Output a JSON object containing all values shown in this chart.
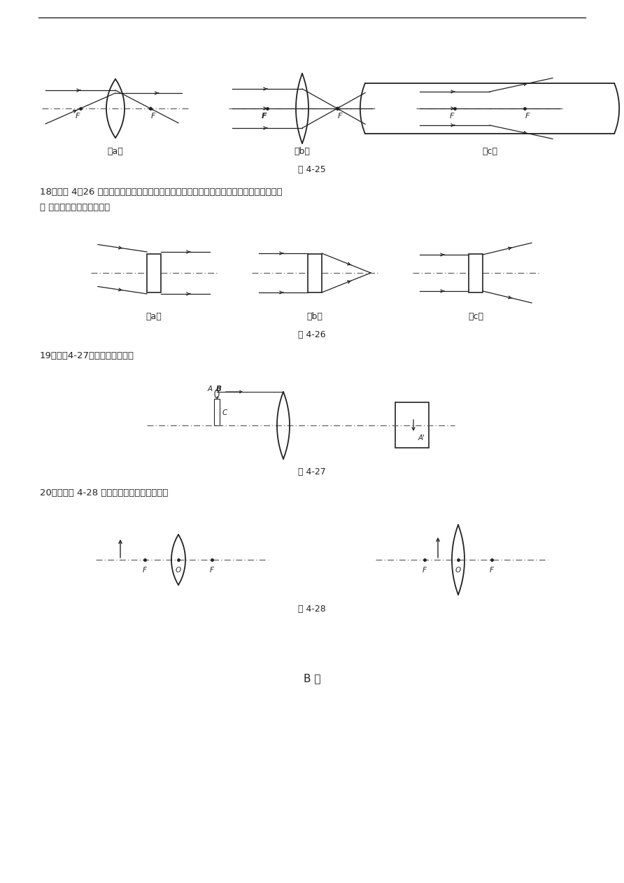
{
  "bg_color": "#ffffff",
  "text_color": "#222222",
  "line_color": "#222222",
  "fig_width": 8.92,
  "fig_height": 12.62,
  "sec18_line1": "18、如图 4－26 所示，根据图中画出的光线通过透镜前后的传播方向，请在图中的方框内填",
  "sec18_line2": "入 适当的透镜种类的符号。",
  "sec19": "19、在图4-27中，完成光路图。",
  "sec20": "20、请在图 4-28 中用作图法画出物体的像。",
  "fig25_label": "图 4-25",
  "fig26_label": "图 4-26",
  "fig27_label": "图 4-27",
  "fig28_label": "图 4-28",
  "bottom_label": "B 卷",
  "sub_a": "（a）",
  "sub_b": "（b）",
  "sub_c": "（c）"
}
